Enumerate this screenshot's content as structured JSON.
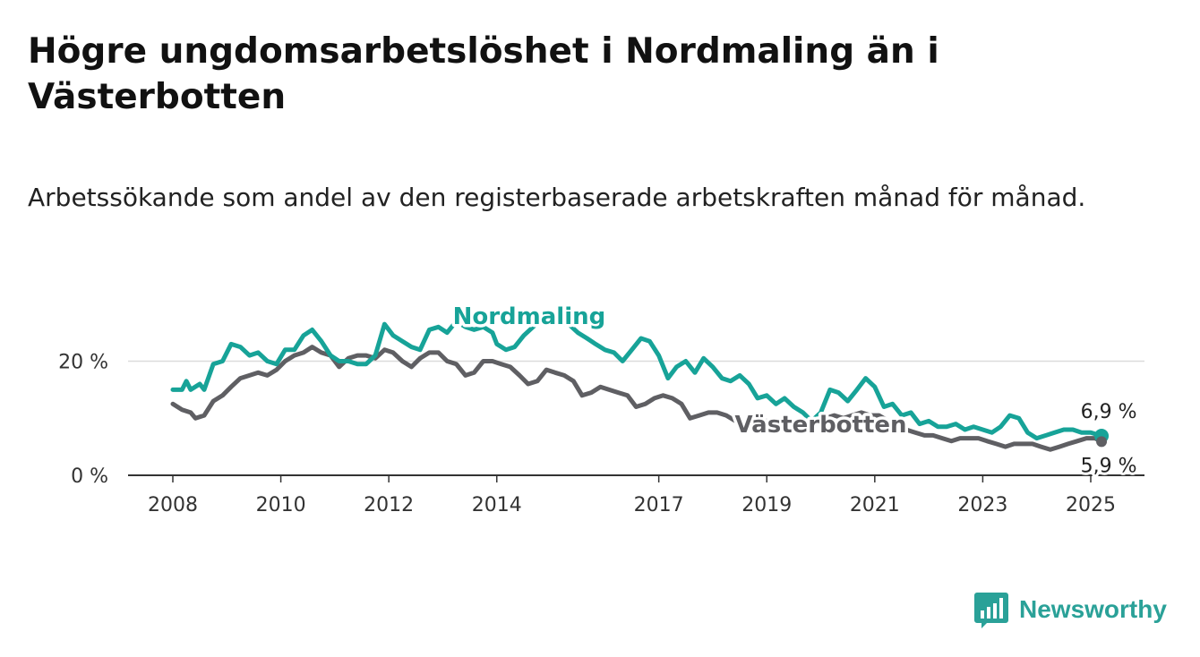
{
  "title": "Högre ungdomsarbetslöshet i Nordmaling än i Västerbotten",
  "subtitle": "Arbetssökande som andel av den registerbaserade arbetskraften månad för månad.",
  "brand": {
    "name": "Newsworthy",
    "logo_icon": "bar-chart-logo-icon",
    "color": "#2aa198"
  },
  "chart_data": {
    "type": "line",
    "title": "Högre ungdomsarbetslöshet i Nordmaling än i Västerbotten",
    "subtitle": "Arbetssökande som andel av den registerbaserade arbetskraften månad för månad.",
    "xlabel": "",
    "ylabel": "",
    "xlim": [
      2007.75,
      2025.9
    ],
    "ylim": [
      0,
      30
    ],
    "x_ticks": [
      2008,
      2010,
      2012,
      2014,
      2017,
      2019,
      2021,
      2023,
      2025
    ],
    "x_tick_labels": [
      "2008",
      "2010",
      "2012",
      "2014",
      "2017",
      "2019",
      "2021",
      "2023",
      "2025"
    ],
    "y_ticks": [
      0,
      20
    ],
    "y_tick_labels": [
      "0 %",
      "20 %"
    ],
    "grid": "horizontal",
    "series": [
      {
        "name": "Nordmaling",
        "color": "#17a398",
        "end_label": "6,9 %",
        "points": [
          [
            2008.0,
            15.0
          ],
          [
            2008.17,
            15.0
          ],
          [
            2008.25,
            16.5
          ],
          [
            2008.33,
            15.0
          ],
          [
            2008.5,
            16.0
          ],
          [
            2008.58,
            15.0
          ],
          [
            2008.75,
            19.5
          ],
          [
            2008.92,
            20.0
          ],
          [
            2009.08,
            23.0
          ],
          [
            2009.25,
            22.5
          ],
          [
            2009.42,
            21.0
          ],
          [
            2009.58,
            21.5
          ],
          [
            2009.75,
            20.0
          ],
          [
            2009.92,
            19.5
          ],
          [
            2010.08,
            22.0
          ],
          [
            2010.25,
            22.0
          ],
          [
            2010.42,
            24.5
          ],
          [
            2010.58,
            25.5
          ],
          [
            2010.75,
            23.5
          ],
          [
            2010.92,
            21.0
          ],
          [
            2011.08,
            20.0
          ],
          [
            2011.25,
            20.0
          ],
          [
            2011.42,
            19.5
          ],
          [
            2011.58,
            19.5
          ],
          [
            2011.75,
            21.0
          ],
          [
            2011.92,
            26.5
          ],
          [
            2012.08,
            24.5
          ],
          [
            2012.25,
            23.5
          ],
          [
            2012.42,
            22.5
          ],
          [
            2012.58,
            22.0
          ],
          [
            2012.75,
            25.5
          ],
          [
            2012.92,
            26.0
          ],
          [
            2013.08,
            25.0
          ],
          [
            2013.25,
            27.0
          ],
          [
            2013.42,
            26.0
          ],
          [
            2013.58,
            25.5
          ],
          [
            2013.75,
            26.0
          ],
          [
            2013.92,
            25.0
          ],
          [
            2014.0,
            23.0
          ],
          [
            2014.17,
            22.0
          ],
          [
            2014.33,
            22.5
          ],
          [
            2014.5,
            24.5
          ],
          [
            2014.67,
            26.0
          ],
          [
            2014.83,
            27.5
          ],
          [
            2015.0,
            28.0
          ],
          [
            2015.17,
            26.5
          ],
          [
            2015.33,
            26.5
          ],
          [
            2015.5,
            25.0
          ],
          [
            2015.67,
            24.0
          ],
          [
            2015.83,
            23.0
          ],
          [
            2016.0,
            22.0
          ],
          [
            2016.17,
            21.5
          ],
          [
            2016.33,
            20.0
          ],
          [
            2016.5,
            22.0
          ],
          [
            2016.67,
            24.0
          ],
          [
            2016.83,
            23.5
          ],
          [
            2017.0,
            21.0
          ],
          [
            2017.17,
            17.0
          ],
          [
            2017.33,
            19.0
          ],
          [
            2017.5,
            20.0
          ],
          [
            2017.67,
            18.0
          ],
          [
            2017.83,
            20.5
          ],
          [
            2018.0,
            19.0
          ],
          [
            2018.17,
            17.0
          ],
          [
            2018.33,
            16.5
          ],
          [
            2018.5,
            17.5
          ],
          [
            2018.67,
            16.0
          ],
          [
            2018.83,
            13.5
          ],
          [
            2019.0,
            14.0
          ],
          [
            2019.17,
            12.5
          ],
          [
            2019.33,
            13.5
          ],
          [
            2019.5,
            12.0
          ],
          [
            2019.67,
            11.0
          ],
          [
            2019.83,
            9.5
          ],
          [
            2020.0,
            11.0
          ],
          [
            2020.17,
            15.0
          ],
          [
            2020.33,
            14.5
          ],
          [
            2020.5,
            13.0
          ],
          [
            2020.67,
            15.0
          ],
          [
            2020.83,
            17.0
          ],
          [
            2021.0,
            15.5
          ],
          [
            2021.17,
            12.0
          ],
          [
            2021.33,
            12.5
          ],
          [
            2021.5,
            10.5
          ],
          [
            2021.67,
            11.0
          ],
          [
            2021.83,
            9.0
          ],
          [
            2022.0,
            9.5
          ],
          [
            2022.17,
            8.5
          ],
          [
            2022.33,
            8.5
          ],
          [
            2022.5,
            9.0
          ],
          [
            2022.67,
            8.0
          ],
          [
            2022.83,
            8.5
          ],
          [
            2023.0,
            8.0
          ],
          [
            2023.17,
            7.5
          ],
          [
            2023.33,
            8.5
          ],
          [
            2023.5,
            10.5
          ],
          [
            2023.67,
            10.0
          ],
          [
            2023.83,
            7.5
          ],
          [
            2024.0,
            6.5
          ],
          [
            2024.17,
            7.0
          ],
          [
            2024.33,
            7.5
          ],
          [
            2024.5,
            8.0
          ],
          [
            2024.67,
            8.0
          ],
          [
            2024.83,
            7.5
          ],
          [
            2025.0,
            7.5
          ],
          [
            2025.1,
            7.2
          ],
          [
            2025.2,
            6.9
          ]
        ]
      },
      {
        "name": "Västerbotten",
        "color": "#5f5f63",
        "end_label": "5,9 %",
        "points": [
          [
            2008.0,
            12.5
          ],
          [
            2008.17,
            11.5
          ],
          [
            2008.33,
            11.0
          ],
          [
            2008.42,
            10.0
          ],
          [
            2008.58,
            10.5
          ],
          [
            2008.75,
            13.0
          ],
          [
            2008.92,
            14.0
          ],
          [
            2009.08,
            15.5
          ],
          [
            2009.25,
            17.0
          ],
          [
            2009.42,
            17.5
          ],
          [
            2009.58,
            18.0
          ],
          [
            2009.75,
            17.5
          ],
          [
            2009.92,
            18.5
          ],
          [
            2010.08,
            20.0
          ],
          [
            2010.25,
            21.0
          ],
          [
            2010.42,
            21.5
          ],
          [
            2010.58,
            22.5
          ],
          [
            2010.75,
            21.5
          ],
          [
            2010.92,
            21.0
          ],
          [
            2011.08,
            19.0
          ],
          [
            2011.25,
            20.5
          ],
          [
            2011.42,
            21.0
          ],
          [
            2011.58,
            21.0
          ],
          [
            2011.75,
            20.5
          ],
          [
            2011.92,
            22.0
          ],
          [
            2012.08,
            21.5
          ],
          [
            2012.25,
            20.0
          ],
          [
            2012.42,
            19.0
          ],
          [
            2012.58,
            20.5
          ],
          [
            2012.75,
            21.5
          ],
          [
            2012.92,
            21.5
          ],
          [
            2013.08,
            20.0
          ],
          [
            2013.25,
            19.5
          ],
          [
            2013.42,
            17.5
          ],
          [
            2013.58,
            18.0
          ],
          [
            2013.75,
            20.0
          ],
          [
            2013.92,
            20.0
          ],
          [
            2014.08,
            19.5
          ],
          [
            2014.25,
            19.0
          ],
          [
            2014.42,
            17.5
          ],
          [
            2014.58,
            16.0
          ],
          [
            2014.75,
            16.5
          ],
          [
            2014.92,
            18.5
          ],
          [
            2015.08,
            18.0
          ],
          [
            2015.25,
            17.5
          ],
          [
            2015.42,
            16.5
          ],
          [
            2015.58,
            14.0
          ],
          [
            2015.75,
            14.5
          ],
          [
            2015.92,
            15.5
          ],
          [
            2016.08,
            15.0
          ],
          [
            2016.25,
            14.5
          ],
          [
            2016.42,
            14.0
          ],
          [
            2016.58,
            12.0
          ],
          [
            2016.75,
            12.5
          ],
          [
            2016.92,
            13.5
          ],
          [
            2017.08,
            14.0
          ],
          [
            2017.25,
            13.5
          ],
          [
            2017.42,
            12.5
          ],
          [
            2017.58,
            10.0
          ],
          [
            2017.75,
            10.5
          ],
          [
            2017.92,
            11.0
          ],
          [
            2018.08,
            11.0
          ],
          [
            2018.25,
            10.5
          ],
          [
            2018.42,
            9.5
          ],
          [
            2018.58,
            8.5
          ],
          [
            2018.75,
            9.0
          ],
          [
            2018.92,
            9.5
          ],
          [
            2019.08,
            9.5
          ],
          [
            2019.25,
            9.0
          ],
          [
            2019.42,
            9.0
          ],
          [
            2019.58,
            9.0
          ],
          [
            2019.75,
            9.5
          ],
          [
            2019.92,
            10.0
          ],
          [
            2020.08,
            10.0
          ],
          [
            2020.25,
            10.5
          ],
          [
            2020.42,
            10.0
          ],
          [
            2020.58,
            10.5
          ],
          [
            2020.75,
            11.0
          ],
          [
            2020.92,
            10.5
          ],
          [
            2021.08,
            10.5
          ],
          [
            2021.25,
            9.5
          ],
          [
            2021.42,
            8.0
          ],
          [
            2021.58,
            8.0
          ],
          [
            2021.75,
            7.5
          ],
          [
            2021.92,
            7.0
          ],
          [
            2022.08,
            7.0
          ],
          [
            2022.25,
            6.5
          ],
          [
            2022.42,
            6.0
          ],
          [
            2022.58,
            6.5
          ],
          [
            2022.75,
            6.5
          ],
          [
            2022.92,
            6.5
          ],
          [
            2023.08,
            6.0
          ],
          [
            2023.25,
            5.5
          ],
          [
            2023.42,
            5.0
          ],
          [
            2023.58,
            5.5
          ],
          [
            2023.75,
            5.5
          ],
          [
            2023.92,
            5.5
          ],
          [
            2024.08,
            5.0
          ],
          [
            2024.25,
            4.5
          ],
          [
            2024.42,
            5.0
          ],
          [
            2024.58,
            5.5
          ],
          [
            2024.75,
            6.0
          ],
          [
            2024.92,
            6.5
          ],
          [
            2025.08,
            6.5
          ],
          [
            2025.2,
            5.9
          ]
        ]
      }
    ],
    "annotations": [
      {
        "text": "Nordmaling",
        "series": "Nordmaling",
        "x": 2014.6,
        "y": 26.5
      },
      {
        "text": "Västerbotten",
        "series": "Västerbotten",
        "x": 2020.0,
        "y": 7.5
      }
    ]
  }
}
